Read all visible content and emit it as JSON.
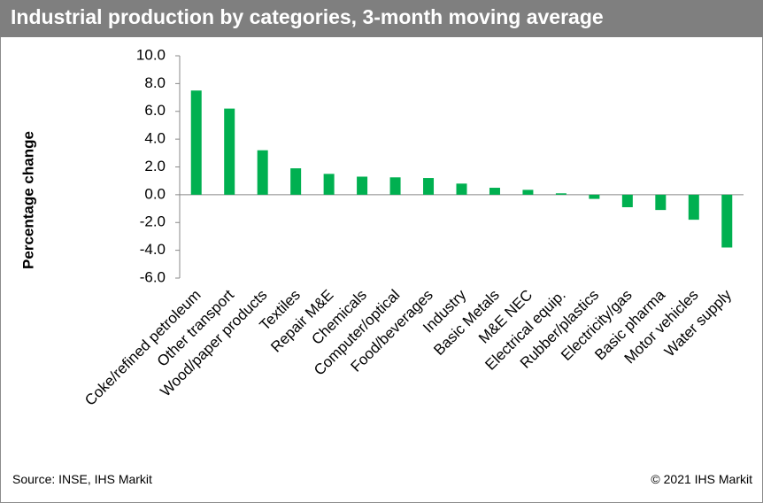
{
  "chart_data": {
    "type": "bar",
    "title": "Industrial production by categories, 3-month moving average",
    "y_label": "Percentage change",
    "source": "Source: INSE, IHS Markit",
    "copyright": "© 2021 IHS Markit",
    "categories": [
      "Coke/refined petroleum",
      "Other transport",
      "Wood/paper products",
      "Textiles",
      "Repair M&E",
      "Chemicals",
      "Computer/optical",
      "Food/beverages",
      "Industry",
      "Basic Metals",
      "M&E NEC",
      "Electrical equip.",
      "Rubber/plastics",
      "Electricity/gas",
      "Basic pharma",
      "Motor vehicles",
      "Water supply"
    ],
    "values": [
      7.5,
      6.2,
      3.2,
      1.9,
      1.5,
      1.3,
      1.25,
      1.2,
      0.8,
      0.5,
      0.35,
      0.1,
      -0.3,
      -0.9,
      -1.1,
      -1.8,
      -3.8
    ],
    "color": "#00b050",
    "ylim": [
      -6,
      10
    ],
    "yticks": [
      {
        "value": -6,
        "label": "-6.0"
      },
      {
        "value": -4,
        "label": "-4.0"
      },
      {
        "value": -2,
        "label": "-2.0"
      },
      {
        "value": 0,
        "label": "0.0"
      },
      {
        "value": 2,
        "label": "2.0"
      },
      {
        "value": 4,
        "label": "4.0"
      },
      {
        "value": 6,
        "label": "6.0"
      },
      {
        "value": 8,
        "label": "8.0"
      },
      {
        "value": 10,
        "label": "10.0"
      }
    ],
    "grid": false
  }
}
